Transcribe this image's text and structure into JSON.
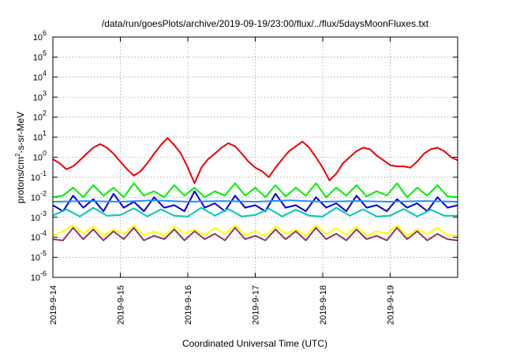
{
  "chart_data": {
    "type": "line",
    "title": "/data/run/goesPlots/archive/2019-09-19/23:00/flux/../flux/5daysMoonFluxes.txt",
    "xlabel": "Coordinated Universal Time (UTC)",
    "ylabel_base": "protons/cm",
    "ylabel_sup": "2",
    "ylabel_rest": "-s-sr-MeV",
    "yscale": "log",
    "ylim": [
      1e-06,
      1000000.0
    ],
    "xlim": [
      "2019-09-14",
      "2019-09-20"
    ],
    "y_ticks": [
      {
        "base": "10",
        "exp": "-6"
      },
      {
        "base": "10",
        "exp": "-5"
      },
      {
        "base": "10",
        "exp": "-4"
      },
      {
        "base": "10",
        "exp": "-3"
      },
      {
        "base": "10",
        "exp": "-2"
      },
      {
        "base": "10",
        "exp": "-1"
      },
      {
        "base": "10",
        "exp": "0"
      },
      {
        "base": "10",
        "exp": "1"
      },
      {
        "base": "10",
        "exp": "2"
      },
      {
        "base": "10",
        "exp": "3"
      },
      {
        "base": "10",
        "exp": "4"
      },
      {
        "base": "10",
        "exp": "5"
      },
      {
        "base": "10",
        "exp": "6"
      }
    ],
    "x_ticks": [
      "2019-9-14",
      "2019-9-15",
      "2019-9-16",
      "2019-9-17",
      "2019-9-18",
      "2019-9-19"
    ],
    "x_tick_days": [
      0,
      1,
      2,
      3,
      4,
      5
    ],
    "grid": true,
    "series": [
      {
        "color": "#ee0000",
        "x_days": [
          0.0,
          0.1,
          0.2,
          0.3,
          0.4,
          0.5,
          0.6,
          0.7,
          0.8,
          0.9,
          1.0,
          1.1,
          1.2,
          1.3,
          1.4,
          1.5,
          1.6,
          1.7,
          1.8,
          1.9,
          2.0,
          2.1,
          2.2,
          2.3,
          2.4,
          2.5,
          2.6,
          2.7,
          2.8,
          2.9,
          3.0,
          3.1,
          3.2,
          3.3,
          3.4,
          3.5,
          3.6,
          3.7,
          3.8,
          3.9,
          4.0,
          4.1,
          4.2,
          4.3,
          4.4,
          4.5,
          4.6,
          4.7,
          4.8,
          4.9,
          5.0,
          5.1,
          5.2,
          5.3,
          5.4,
          5.5,
          5.6,
          5.7,
          5.8,
          5.9,
          6.0
        ],
        "values": [
          0.8,
          0.5,
          0.25,
          0.35,
          0.7,
          1.5,
          3.0,
          4.5,
          3.0,
          1.5,
          0.6,
          0.25,
          0.12,
          0.2,
          0.5,
          1.5,
          4.0,
          9.0,
          4.0,
          1.5,
          0.3,
          0.05,
          0.3,
          0.8,
          1.5,
          3.0,
          5.0,
          3.5,
          1.5,
          0.6,
          0.3,
          0.2,
          0.1,
          0.3,
          0.8,
          2.0,
          3.5,
          6.0,
          3.0,
          1.0,
          0.3,
          0.07,
          0.15,
          0.5,
          1.0,
          2.0,
          3.0,
          2.5,
          1.2,
          0.7,
          0.4,
          0.35,
          0.35,
          0.3,
          0.6,
          1.5,
          2.5,
          3.0,
          2.0,
          1.0,
          0.7
        ]
      },
      {
        "color": "#00ee00",
        "x_days": [
          0.0,
          0.15,
          0.3,
          0.45,
          0.6,
          0.75,
          0.9,
          1.05,
          1.2,
          1.35,
          1.5,
          1.65,
          1.8,
          1.95,
          2.1,
          2.25,
          2.4,
          2.55,
          2.7,
          2.85,
          3.0,
          3.15,
          3.3,
          3.45,
          3.6,
          3.75,
          3.9,
          4.05,
          4.2,
          4.35,
          4.5,
          4.65,
          4.8,
          4.95,
          5.1,
          5.25,
          5.4,
          5.55,
          5.7,
          5.85,
          6.0
        ],
        "values": [
          0.01,
          0.012,
          0.03,
          0.01,
          0.04,
          0.012,
          0.03,
          0.01,
          0.05,
          0.012,
          0.02,
          0.01,
          0.04,
          0.012,
          0.03,
          0.01,
          0.02,
          0.012,
          0.05,
          0.012,
          0.03,
          0.01,
          0.04,
          0.011,
          0.03,
          0.012,
          0.05,
          0.01,
          0.03,
          0.012,
          0.04,
          0.011,
          0.02,
          0.012,
          0.05,
          0.01,
          0.03,
          0.012,
          0.04,
          0.011,
          0.01
        ]
      },
      {
        "color": "#0000dd",
        "x_days": [
          0.0,
          0.15,
          0.3,
          0.45,
          0.6,
          0.75,
          0.9,
          1.05,
          1.2,
          1.35,
          1.5,
          1.65,
          1.8,
          1.95,
          2.1,
          2.25,
          2.4,
          2.55,
          2.7,
          2.85,
          3.0,
          3.15,
          3.3,
          3.45,
          3.6,
          3.75,
          3.9,
          4.05,
          4.2,
          4.35,
          4.5,
          4.65,
          4.8,
          4.95,
          5.1,
          5.25,
          5.4,
          5.55,
          5.7,
          5.85,
          6.0
        ],
        "values": [
          0.004,
          0.002,
          0.012,
          0.003,
          0.008,
          0.002,
          0.015,
          0.003,
          0.006,
          0.002,
          0.01,
          0.003,
          0.004,
          0.002,
          0.02,
          0.003,
          0.005,
          0.002,
          0.012,
          0.003,
          0.004,
          0.002,
          0.015,
          0.003,
          0.004,
          0.002,
          0.01,
          0.003,
          0.005,
          0.002,
          0.012,
          0.003,
          0.004,
          0.002,
          0.008,
          0.003,
          0.005,
          0.002,
          0.01,
          0.003,
          0.004
        ]
      },
      {
        "color": "#1e90ff",
        "x_days": [
          0.0,
          0.5,
          1.0,
          1.5,
          2.0,
          2.5,
          3.0,
          3.5,
          4.0,
          4.5,
          5.0,
          5.5,
          6.0
        ],
        "values": [
          0.006,
          0.0065,
          0.006,
          0.007,
          0.006,
          0.0065,
          0.006,
          0.007,
          0.006,
          0.0065,
          0.006,
          0.0065,
          0.006
        ]
      },
      {
        "color": "#00c8b4",
        "x_days": [
          0.0,
          0.2,
          0.4,
          0.6,
          0.8,
          1.0,
          1.2,
          1.4,
          1.6,
          1.8,
          2.0,
          2.2,
          2.4,
          2.6,
          2.8,
          3.0,
          3.2,
          3.4,
          3.6,
          3.8,
          4.0,
          4.2,
          4.4,
          4.6,
          4.8,
          5.0,
          5.2,
          5.4,
          5.6,
          5.8,
          6.0
        ],
        "values": [
          0.0012,
          0.0025,
          0.0011,
          0.003,
          0.0012,
          0.0013,
          0.0028,
          0.0011,
          0.0025,
          0.0012,
          0.0011,
          0.003,
          0.0012,
          0.0026,
          0.0011,
          0.0013,
          0.0027,
          0.0011,
          0.0024,
          0.0012,
          0.0011,
          0.003,
          0.0012,
          0.0025,
          0.0011,
          0.0012,
          0.0026,
          0.0011,
          0.0024,
          0.0012,
          0.0012
        ]
      },
      {
        "color": "#ffff00",
        "x_days": [
          0.0,
          0.15,
          0.3,
          0.45,
          0.6,
          0.75,
          0.9,
          1.05,
          1.2,
          1.35,
          1.5,
          1.65,
          1.8,
          1.95,
          2.1,
          2.25,
          2.4,
          2.55,
          2.7,
          2.85,
          3.0,
          3.15,
          3.3,
          3.45,
          3.6,
          3.75,
          3.9,
          4.05,
          4.2,
          4.35,
          4.5,
          4.65,
          4.8,
          4.95,
          5.1,
          5.25,
          5.4,
          5.55,
          5.7,
          5.85,
          6.0
        ],
        "values": [
          0.00012,
          0.0002,
          0.0004,
          0.00015,
          0.00035,
          0.00012,
          0.00025,
          0.00014,
          0.0004,
          0.00013,
          0.0002,
          0.00012,
          0.00035,
          0.00015,
          0.00025,
          0.00012,
          0.0003,
          0.00014,
          0.0004,
          0.00013,
          0.0002,
          0.00012,
          0.00035,
          0.00015,
          0.00025,
          0.00012,
          0.0004,
          0.00014,
          0.0003,
          0.00013,
          0.00035,
          0.00012,
          0.0002,
          0.00015,
          0.0004,
          0.00012,
          0.00025,
          0.00014,
          0.0003,
          0.00013,
          0.00012
        ]
      },
      {
        "color": "#8b3a62",
        "x_days": [
          0.0,
          0.15,
          0.3,
          0.45,
          0.6,
          0.75,
          0.9,
          1.05,
          1.2,
          1.35,
          1.5,
          1.65,
          1.8,
          1.95,
          2.1,
          2.25,
          2.4,
          2.55,
          2.7,
          2.85,
          3.0,
          3.15,
          3.3,
          3.45,
          3.6,
          3.75,
          3.9,
          4.05,
          4.2,
          4.35,
          4.5,
          4.65,
          4.8,
          4.95,
          5.1,
          5.25,
          5.4,
          5.55,
          5.7,
          5.85,
          6.0
        ],
        "values": [
          8e-05,
          7e-05,
          0.0003,
          8e-05,
          0.00025,
          7e-05,
          0.0002,
          8e-05,
          0.0003,
          7e-05,
          0.00012,
          8e-05,
          0.00025,
          7e-05,
          0.0002,
          8e-05,
          0.00015,
          7e-05,
          0.0003,
          8e-05,
          0.00012,
          7e-05,
          0.00025,
          8e-05,
          0.0002,
          7e-05,
          0.0003,
          8e-05,
          0.00015,
          7e-05,
          0.00025,
          8e-05,
          0.00012,
          7e-05,
          0.0003,
          8e-05,
          0.0002,
          7e-05,
          0.00015,
          8e-05,
          7e-05
        ]
      }
    ]
  }
}
